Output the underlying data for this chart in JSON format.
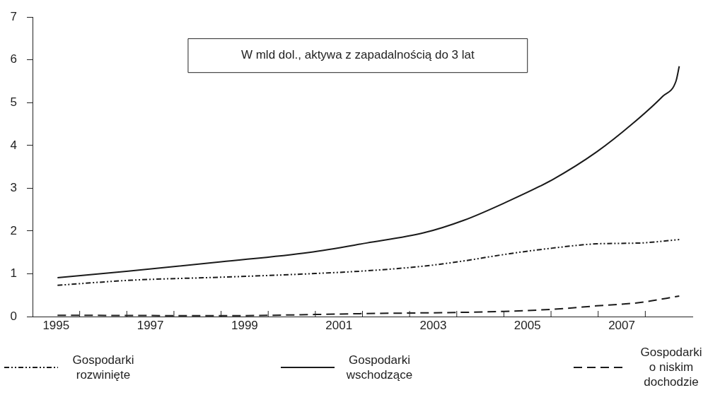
{
  "chart_data": {
    "type": "line",
    "title": "W mld dol., aktywa z zapadalnością do 3 lat",
    "xlim": [
      1995,
      2009
    ],
    "xticks": [
      {
        "value": 1995.5,
        "label": "1995"
      },
      {
        "value": 1996,
        "label": null
      },
      {
        "value": 1997,
        "label": null
      },
      {
        "value": 1997.5,
        "label": "1997"
      },
      {
        "value": 1998,
        "label": null
      },
      {
        "value": 1999,
        "label": null
      },
      {
        "value": 1999.5,
        "label": "1999"
      },
      {
        "value": 2000,
        "label": null
      },
      {
        "value": 2001,
        "label": null
      },
      {
        "value": 2001.5,
        "label": "2001"
      },
      {
        "value": 2002,
        "label": null
      },
      {
        "value": 2003,
        "label": null
      },
      {
        "value": 2003.5,
        "label": "2003"
      },
      {
        "value": 2004,
        "label": null
      },
      {
        "value": 2005,
        "label": null
      },
      {
        "value": 2005.5,
        "label": "2005"
      },
      {
        "value": 2006,
        "label": null
      },
      {
        "value": 2007,
        "label": null
      },
      {
        "value": 2007.5,
        "label": "2007"
      },
      {
        "value": 2008,
        "label": null
      }
    ],
    "ylim": [
      0,
      7
    ],
    "yticks": [
      0,
      1,
      2,
      3,
      4,
      5,
      6,
      7
    ],
    "grid": false,
    "legend": "bottom",
    "marker": "none",
    "series": [
      {
        "name": "Gospodarki rozwinięte",
        "color": "#1a1a1a",
        "line_style": "dashdot",
        "x": [
          1995.53,
          1997.1,
          1999.0,
          2000.87,
          2002.09,
          2003.31,
          2004.15,
          2005.0,
          2006.03,
          2006.97,
          2007.9,
          2008.72
        ],
        "values": [
          0.73,
          0.85,
          0.92,
          1.0,
          1.07,
          1.18,
          1.3,
          1.45,
          1.6,
          1.7,
          1.72,
          1.8
        ]
      },
      {
        "name": "Gospodarki wschodzące",
        "color": "#1a1a1a",
        "line_style": "solid",
        "x": [
          1995.53,
          1997.03,
          1999.0,
          2000.87,
          2002.09,
          2003.31,
          2004.15,
          2005.0,
          2006.03,
          2006.97,
          2007.72,
          2008.37,
          2008.65,
          2008.72
        ],
        "values": [
          0.91,
          1.06,
          1.28,
          1.5,
          1.72,
          1.96,
          2.25,
          2.65,
          3.2,
          3.85,
          4.5,
          5.15,
          5.5,
          5.85
        ]
      },
      {
        "name": "Gospodarki o niskim dochodzie",
        "color": "#1a1a1a",
        "line_style": "dashed",
        "x": [
          1995.53,
          1999.0,
          2002.09,
          2005.0,
          2006.03,
          2006.97,
          2007.9,
          2008.72
        ],
        "values": [
          0.03,
          0.02,
          0.07,
          0.12,
          0.17,
          0.25,
          0.33,
          0.48
        ]
      }
    ]
  }
}
